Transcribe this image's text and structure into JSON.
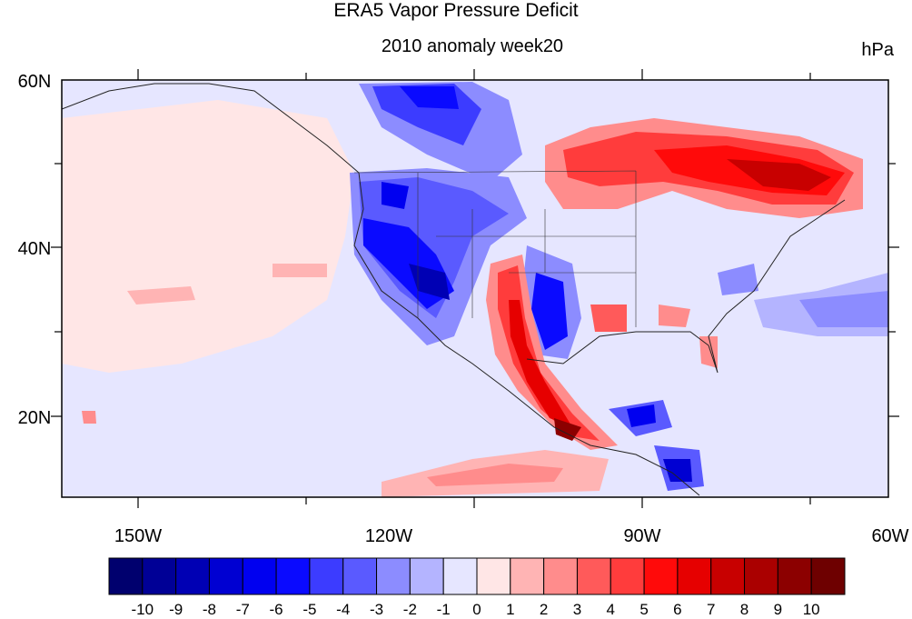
{
  "title": "ERA5 Vapor Pressure Deficit",
  "subtitle": "2010 anomaly week20",
  "units": "hPa",
  "lat_labels": [
    "60N",
    "40N",
    "20N"
  ],
  "lon_labels": [
    "150W",
    "120W",
    "90W",
    "60W"
  ],
  "colorbar": {
    "labels": [
      "-10",
      "-9",
      "-8",
      "-7",
      "-6",
      "-5",
      "-4",
      "-3",
      "-2",
      "-1",
      "0",
      "1",
      "2",
      "3",
      "4",
      "5",
      "6",
      "7",
      "8",
      "9",
      "10"
    ],
    "colors": [
      "#00006e",
      "#000096",
      "#0000b4",
      "#0000d2",
      "#0000f0",
      "#0a0aff",
      "#3c3cff",
      "#5a5aff",
      "#8c8cff",
      "#b4b4ff",
      "#e6e6ff",
      "#ffe6e6",
      "#ffb4b4",
      "#ff8c8c",
      "#ff5a5a",
      "#ff3c3c",
      "#ff0a0a",
      "#e60000",
      "#c80000",
      "#aa0000",
      "#8c0000",
      "#6e0000"
    ]
  }
}
